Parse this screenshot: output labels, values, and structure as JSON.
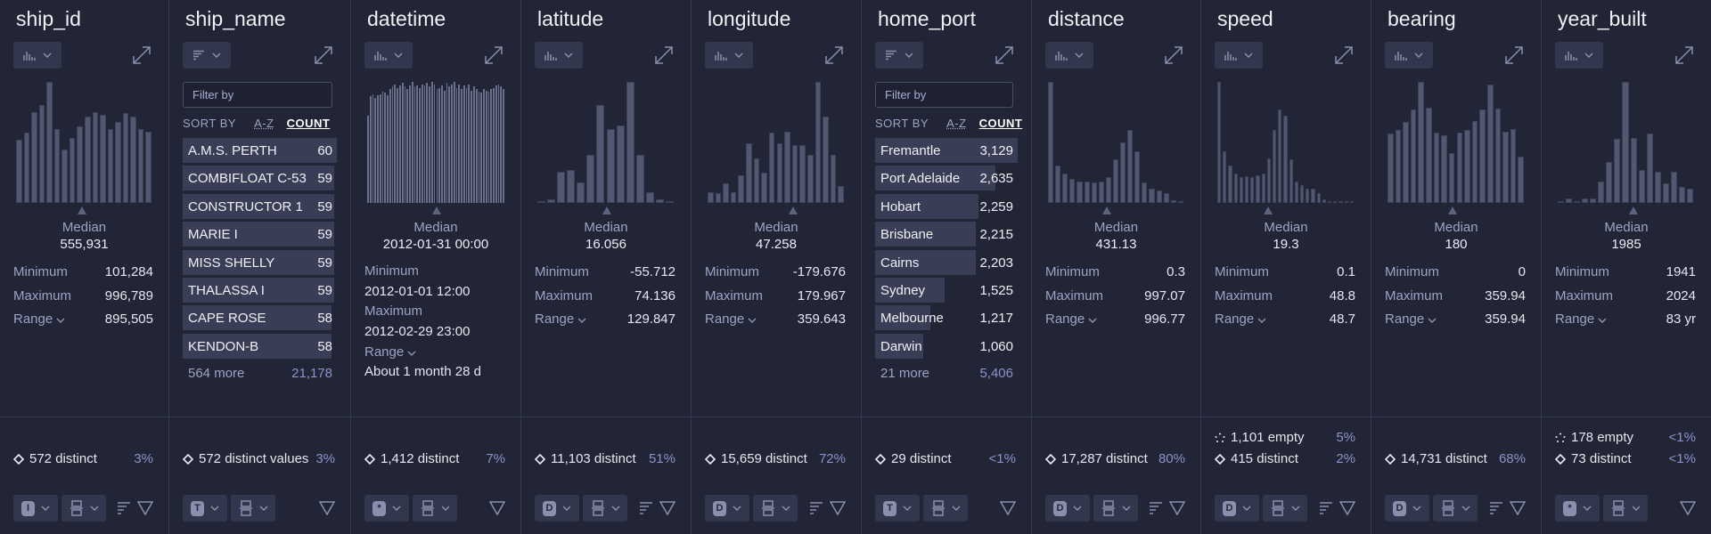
{
  "colors": {
    "background": "#222536",
    "bar": "#525872",
    "label": "#9ea3c4",
    "text": "#eceef5",
    "accent_pct": "#8d93c8"
  },
  "columns": [
    {
      "kind": "numeric",
      "title": "ship_id",
      "header_icon": "histogram-icon",
      "type_badge": "I",
      "footer_sort_icon": true,
      "histogram": [
        52,
        58,
        75,
        81,
        100,
        61,
        44,
        54,
        63,
        71,
        75,
        73,
        61,
        67,
        74,
        71,
        61,
        59
      ],
      "median_position": 0.48,
      "median_label": "Median",
      "median": "555,931",
      "stats": [
        {
          "label": "Minimum",
          "value": "101,284"
        },
        {
          "label": "Maximum",
          "value": "996,789"
        },
        {
          "label": "Range",
          "value": "895,505",
          "dropdown": true
        }
      ],
      "footer": [
        {
          "icon": "diamond-icon",
          "text": "572 distinct",
          "pct": "3%"
        }
      ]
    },
    {
      "kind": "categorical",
      "title": "ship_name",
      "header_icon": "sort-lines-icon",
      "type_badge": "T",
      "footer_sort_icon": false,
      "filter_placeholder": "Filter by",
      "sort_by_label": "SORT BY",
      "sort_options": [
        "A-Z",
        "COUNT"
      ],
      "sort_active": "COUNT",
      "items": [
        {
          "name": "A.M.S. PERTH",
          "count": "60",
          "value": 60
        },
        {
          "name": "COMBIFLOAT C-53",
          "count": "59",
          "value": 59
        },
        {
          "name": "CONSTRUCTOR 1",
          "count": "59",
          "value": 59
        },
        {
          "name": "MARIE I",
          "count": "59",
          "value": 59
        },
        {
          "name": "MISS SHELLY",
          "count": "59",
          "value": 59
        },
        {
          "name": "THALASSA I",
          "count": "59",
          "value": 59
        },
        {
          "name": "CAPE ROSE",
          "count": "58",
          "value": 58
        },
        {
          "name": "KENDON-B",
          "count": "58",
          "value": 58
        }
      ],
      "more_label": "564 more",
      "more_count": "21,178",
      "footer": [
        {
          "icon": "diamond-icon",
          "text": "572 distinct values",
          "pct": "3%"
        }
      ]
    },
    {
      "kind": "datetime",
      "title": "datetime",
      "header_icon": "histogram-icon",
      "type_badge": "*",
      "footer_sort_icon": false,
      "histogram": [
        72,
        88,
        90,
        87,
        89,
        90,
        92,
        91,
        89,
        94,
        96,
        98,
        95,
        97,
        99,
        96,
        94,
        97,
        100,
        96,
        97,
        95,
        98,
        97,
        99,
        96,
        100,
        98,
        94,
        95,
        97,
        93,
        99,
        96,
        98,
        100,
        95,
        98,
        94,
        97,
        95,
        98,
        93,
        96,
        94,
        92,
        91,
        94,
        93,
        92,
        94,
        95,
        97,
        98,
        96,
        94
      ],
      "median_position": 0.5,
      "median_label": "Median",
      "median": "2012-01-31 00:00",
      "stats": [
        {
          "label": "Minimum",
          "value": "2012-01-01 12:00"
        },
        {
          "label": "Maximum",
          "value": "2012-02-29 23:00"
        },
        {
          "label": "Range",
          "value": "About 1 month 28 d",
          "dropdown": true
        }
      ],
      "footer": [
        {
          "icon": "diamond-icon",
          "text": "1,412 distinct",
          "pct": "7%"
        }
      ]
    },
    {
      "kind": "numeric",
      "title": "latitude",
      "header_icon": "histogram-icon",
      "type_badge": "D",
      "footer_sort_icon": true,
      "histogram": [
        1,
        3,
        26,
        27,
        17,
        40,
        81,
        61,
        64,
        100,
        40,
        9,
        3,
        1
      ],
      "median_position": 0.5,
      "median_label": "Median",
      "median": "16.056",
      "stats": [
        {
          "label": "Minimum",
          "value": "-55.712"
        },
        {
          "label": "Maximum",
          "value": "74.136"
        },
        {
          "label": "Range",
          "value": "129.847",
          "dropdown": true
        }
      ],
      "footer": [
        {
          "icon": "diamond-icon",
          "text": "11,103 distinct",
          "pct": "51%"
        }
      ]
    },
    {
      "kind": "numeric",
      "title": "longitude",
      "header_icon": "histogram-icon",
      "type_badge": "D",
      "footer_sort_icon": true,
      "histogram": [
        9,
        8,
        16,
        9,
        23,
        49,
        37,
        25,
        58,
        49,
        59,
        48,
        48,
        40,
        100,
        71,
        40,
        14
      ],
      "median_position": 0.62,
      "median_label": "Median",
      "median": "47.258",
      "stats": [
        {
          "label": "Minimum",
          "value": "-179.676"
        },
        {
          "label": "Maximum",
          "value": "179.967"
        },
        {
          "label": "Range",
          "value": "359.643",
          "dropdown": true
        }
      ],
      "footer": [
        {
          "icon": "diamond-icon",
          "text": "15,659 distinct",
          "pct": "72%"
        }
      ]
    },
    {
      "kind": "categorical",
      "title": "home_port",
      "header_icon": "sort-lines-icon",
      "type_badge": "T",
      "footer_sort_icon": false,
      "filter_placeholder": "Filter by",
      "sort_by_label": "SORT BY",
      "sort_options": [
        "A-Z",
        "COUNT"
      ],
      "sort_active": "COUNT",
      "items": [
        {
          "name": "Fremantle",
          "count": "3,129",
          "value": 3129
        },
        {
          "name": "Port Adelaide",
          "count": "2,635",
          "value": 2635
        },
        {
          "name": "Hobart",
          "count": "2,259",
          "value": 2259
        },
        {
          "name": "Brisbane",
          "count": "2,215",
          "value": 2215
        },
        {
          "name": "Cairns",
          "count": "2,203",
          "value": 2203
        },
        {
          "name": "Sydney",
          "count": "1,525",
          "value": 1525
        },
        {
          "name": "Melbourne",
          "count": "1,217",
          "value": 1217
        },
        {
          "name": "Darwin",
          "count": "1,060",
          "value": 1060
        }
      ],
      "more_label": "21 more",
      "more_count": "5,406",
      "footer": [
        {
          "icon": "diamond-icon",
          "text": "29 distinct",
          "pct": "<1%"
        }
      ]
    },
    {
      "kind": "numeric",
      "title": "distance",
      "header_icon": "histogram-icon",
      "type_badge": "D",
      "footer_sort_icon": true,
      "histogram": [
        100,
        31,
        24,
        20,
        18,
        18,
        17,
        18,
        21,
        36,
        50,
        60,
        43,
        17,
        12,
        10,
        8,
        2,
        1
      ],
      "median_position": 0.43,
      "median_label": "Median",
      "median": "431.13",
      "stats": [
        {
          "label": "Minimum",
          "value": "0.3"
        },
        {
          "label": "Maximum",
          "value": "997.07"
        },
        {
          "label": "Range",
          "value": "996.77",
          "dropdown": true
        }
      ],
      "footer": [
        {
          "icon": "diamond-icon",
          "text": "17,287 distinct",
          "pct": "80%"
        }
      ]
    },
    {
      "kind": "numeric",
      "title": "speed",
      "header_icon": "histogram-icon",
      "type_badge": "D",
      "footer_sort_icon": true,
      "histogram": [
        100,
        43,
        31,
        24,
        21,
        22,
        21,
        23,
        24,
        37,
        60,
        77,
        72,
        36,
        18,
        15,
        12,
        12,
        8,
        3,
        1,
        1,
        0,
        1,
        1
      ],
      "median_position": 0.37,
      "median_label": "Median",
      "median": "19.3",
      "stats": [
        {
          "label": "Minimum",
          "value": "0.1"
        },
        {
          "label": "Maximum",
          "value": "48.8"
        },
        {
          "label": "Range",
          "value": "48.7",
          "dropdown": true
        }
      ],
      "footer": [
        {
          "icon": "dots-empty-icon",
          "text": "1,101 empty",
          "pct": "5%"
        },
        {
          "icon": "diamond-icon",
          "text": "415 distinct",
          "pct": "2%"
        }
      ]
    },
    {
      "kind": "numeric",
      "title": "bearing",
      "header_icon": "histogram-icon",
      "type_badge": "D",
      "footer_sort_icon": true,
      "histogram": [
        57,
        60,
        67,
        77,
        100,
        79,
        58,
        56,
        41,
        58,
        60,
        68,
        77,
        98,
        78,
        59,
        61,
        38
      ],
      "median_position": 0.47,
      "median_label": "Median",
      "median": "180",
      "stats": [
        {
          "label": "Minimum",
          "value": "0"
        },
        {
          "label": "Maximum",
          "value": "359.94"
        },
        {
          "label": "Range",
          "value": "359.94",
          "dropdown": true
        }
      ],
      "footer": [
        {
          "icon": "diamond-icon",
          "text": "14,731 distinct",
          "pct": "68%"
        }
      ]
    },
    {
      "kind": "numeric",
      "title": "year_built",
      "header_icon": "histogram-icon",
      "type_badge": "*",
      "footer_sort_icon": false,
      "histogram": [
        1,
        4,
        1,
        4,
        4,
        18,
        34,
        53,
        100,
        54,
        27,
        57,
        26,
        16,
        26,
        13,
        12
      ],
      "median_position": 0.55,
      "median_label": "Median",
      "median": "1985",
      "stats": [
        {
          "label": "Minimum",
          "value": "1941"
        },
        {
          "label": "Maximum",
          "value": "2024"
        },
        {
          "label": "Range",
          "value": "83 yr",
          "dropdown": true
        }
      ],
      "footer": [
        {
          "icon": "dots-empty-icon",
          "text": "178 empty",
          "pct": "<1%"
        },
        {
          "icon": "diamond-icon",
          "text": "73 distinct",
          "pct": "<1%"
        }
      ]
    }
  ]
}
